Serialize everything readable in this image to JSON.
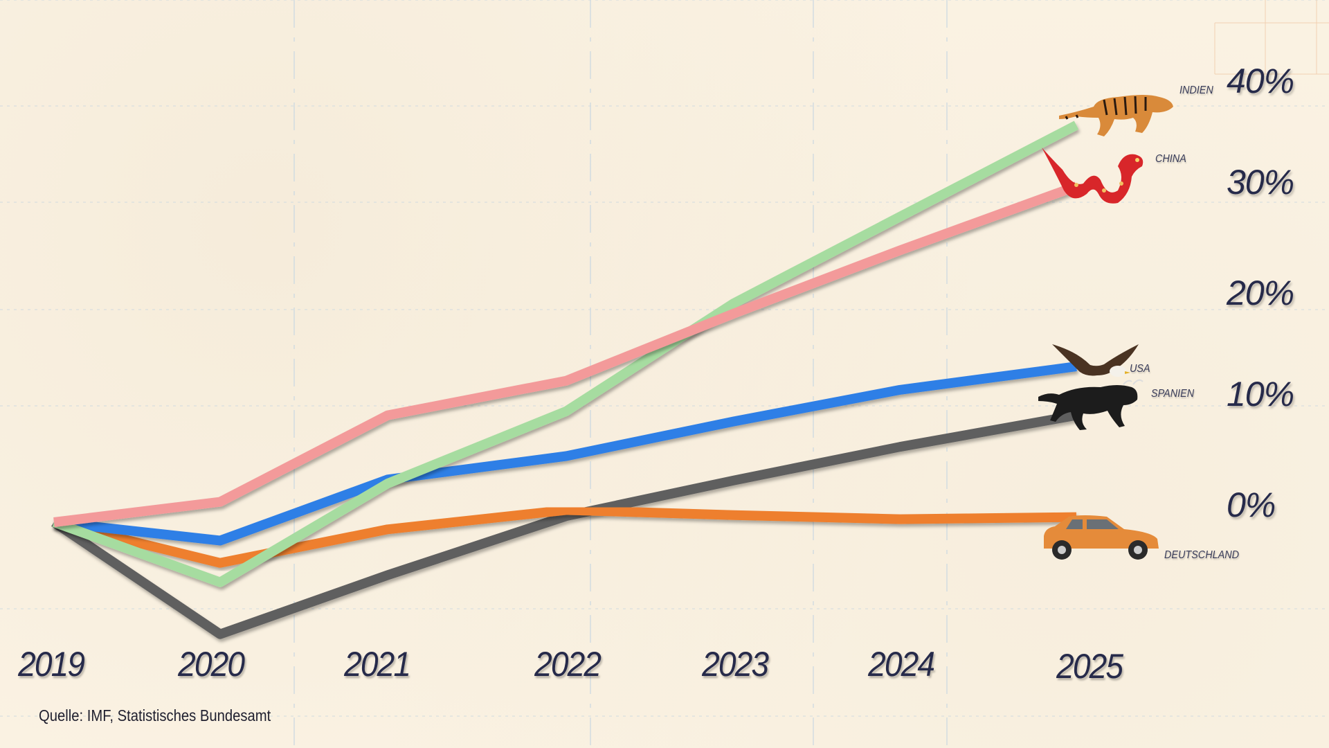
{
  "source": "Quelle: IMF, Statistisches Bundesamt",
  "y_axis": {
    "labels": [
      {
        "text": "40%",
        "value": 40
      },
      {
        "text": "30%",
        "value": 30
      },
      {
        "text": "20%",
        "value": 20
      },
      {
        "text": "10%",
        "value": 10
      },
      {
        "text": "0%",
        "value": 0
      }
    ]
  },
  "x_axis": {
    "labels": [
      "2019",
      "2020",
      "2021",
      "2022",
      "2023",
      "2024",
      "2025"
    ]
  },
  "countries": {
    "indien": {
      "label": "INDIEN",
      "icon": "tiger-icon",
      "color": "#a6dca0"
    },
    "china": {
      "label": "CHINA",
      "icon": "dragon-icon",
      "color": "#f39a9a"
    },
    "usa": {
      "label": "USA",
      "icon": "eagle-icon",
      "color": "#2f7fe6"
    },
    "spanien": {
      "label": "SPANIEN",
      "icon": "bull-icon",
      "color": "#5e5e5e"
    },
    "deutschland": {
      "label": "DEUTSCHLAND",
      "icon": "car-icon",
      "color": "#ee7f2d"
    }
  },
  "chart_data": {
    "type": "line",
    "title": "",
    "xlabel": "",
    "ylabel": "",
    "categories": [
      "2019",
      "2020",
      "2021",
      "2022",
      "2023",
      "2024",
      "2025"
    ],
    "ylim": [
      -12,
      42
    ],
    "ytick_labels": [
      "0%",
      "10%",
      "20%",
      "30%",
      "40%"
    ],
    "grid": "dashed horizontal",
    "legend": "inline labels at line ends with illustrations",
    "annotations": [
      "Quelle: IMF, Statistisches Bundesamt"
    ],
    "series": [
      {
        "name": "Indien",
        "color": "#a6dca0",
        "values": [
          0,
          -5.9,
          3.8,
          10.9,
          21.5,
          30.0,
          39.0
        ]
      },
      {
        "name": "China",
        "color": "#f39a9a",
        "values": [
          0,
          2.0,
          10.5,
          13.9,
          20.5,
          26.7,
          33.0
        ]
      },
      {
        "name": "USA",
        "color": "#2f7fe6",
        "values": [
          0,
          -1.8,
          4.2,
          6.5,
          9.9,
          13.0,
          15.3
        ]
      },
      {
        "name": "Spanien",
        "color": "#5e5e5e",
        "values": [
          0,
          -11.0,
          -5.2,
          0.6,
          4.1,
          7.4,
          10.5
        ]
      },
      {
        "name": "Deutschland",
        "color": "#ee7f2d",
        "values": [
          0,
          -4.0,
          -0.7,
          1.2,
          0.7,
          0.3,
          0.5
        ]
      }
    ]
  }
}
